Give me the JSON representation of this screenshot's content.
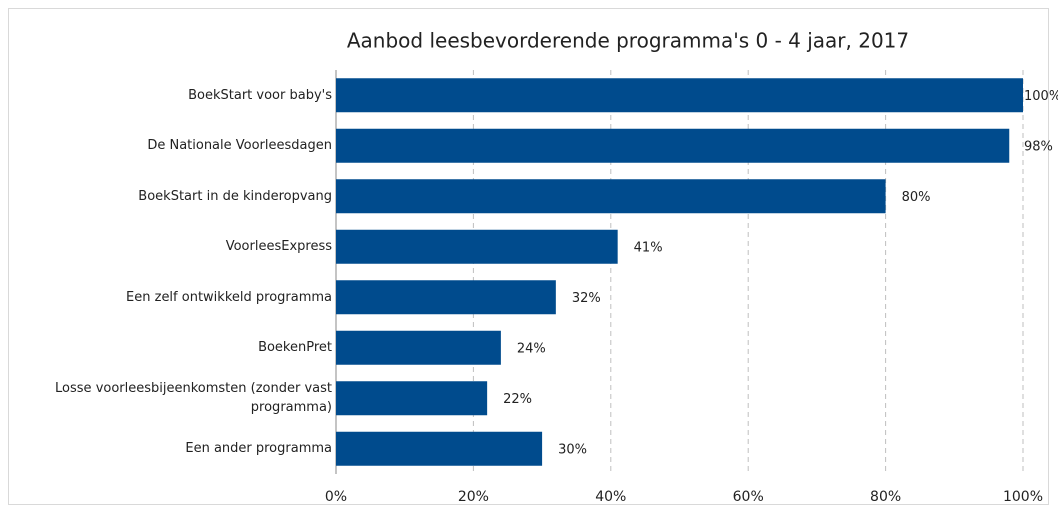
{
  "chart_data": {
    "type": "barh",
    "title": "Aanbod leesbevorderende programma's 0 - 4 jaar, 2017",
    "categories": [
      "BoekStart voor baby's",
      "De Nationale Voorleesdagen",
      "BoekStart in de kinderopvang",
      "VoorleesExpress",
      "Een zelf ontwikkeld programma",
      "BoekenPret",
      "Losse voorleesbijeenkomsten (zonder vast programma)",
      "Een ander programma"
    ],
    "values": [
      100,
      98,
      80,
      41,
      32,
      24,
      22,
      30
    ],
    "value_labels": [
      "100%",
      "98%",
      "80%",
      "41%",
      "32%",
      "24%",
      "22%",
      "30%"
    ],
    "color": "#004b8d",
    "xlim": [
      0,
      100
    ],
    "xticks": [
      {
        "value": 0,
        "label": "0%"
      },
      {
        "value": 20,
        "label": "20%"
      },
      {
        "value": 40,
        "label": "40%"
      },
      {
        "value": 60,
        "label": "60%"
      },
      {
        "value": 80,
        "label": "80%"
      },
      {
        "value": 100,
        "label": "100%"
      }
    ],
    "grid": true
  }
}
